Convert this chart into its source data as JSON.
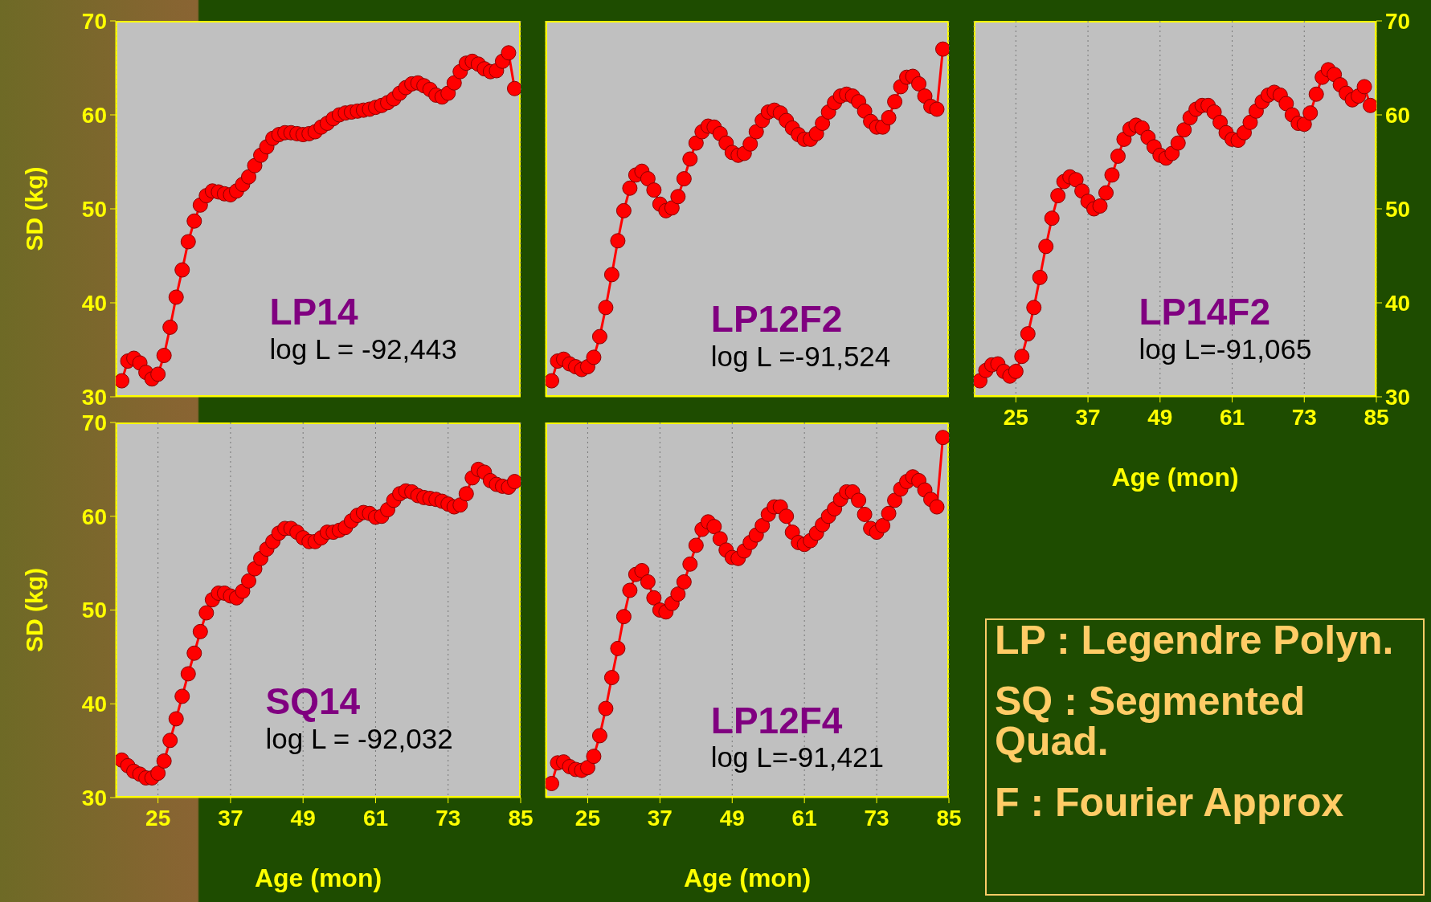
{
  "chart_data": [
    {
      "type": "line",
      "ylabel": "SD (kg)",
      "annotations": [
        "LP14",
        "log L = -92,443"
      ],
      "xlim": [
        18,
        85
      ],
      "ylim": [
        30,
        70
      ],
      "xticks": [
        25,
        37,
        49,
        61,
        73,
        85
      ],
      "yticks": [
        30,
        40,
        50,
        60,
        70
      ],
      "grid": "x",
      "marker": "circle",
      "tick_labels": "y",
      "x": [
        19,
        20,
        21,
        22,
        23,
        24,
        25,
        26,
        27,
        28,
        29,
        30,
        31,
        32,
        33,
        34,
        35,
        36,
        37,
        38,
        39,
        40,
        41,
        42,
        43,
        44,
        45,
        46,
        47,
        48,
        49,
        50,
        51,
        52,
        53,
        54,
        55,
        56,
        57,
        58,
        59,
        60,
        61,
        62,
        63,
        64,
        65,
        66,
        67,
        68,
        69,
        70,
        71,
        72,
        73,
        74,
        75,
        76,
        77,
        78,
        79,
        80,
        81,
        82,
        83,
        84
      ],
      "series": [
        {
          "color": "#ff0000",
          "values": [
            31.7,
            33.8,
            34.1,
            33.6,
            32.6,
            31.9,
            32.4,
            34.4,
            37.4,
            40.6,
            43.5,
            46.5,
            48.7,
            50.4,
            51.4,
            51.9,
            51.8,
            51.6,
            51.5,
            51.9,
            52.6,
            53.4,
            54.6,
            55.7,
            56.6,
            57.5,
            57.9,
            58.1,
            58.1,
            58.0,
            57.9,
            58.0,
            58.2,
            58.7,
            59.1,
            59.6,
            60.0,
            60.2,
            60.3,
            60.4,
            60.5,
            60.6,
            60.8,
            61.0,
            61.3,
            61.7,
            62.3,
            62.9,
            63.3,
            63.4,
            63.1,
            62.7,
            62.1,
            61.9,
            62.3,
            63.4,
            64.6,
            65.5,
            65.7,
            65.4,
            64.9,
            64.6,
            64.7,
            65.7,
            66.6,
            62.8
          ]
        }
      ]
    },
    {
      "type": "line",
      "annotations": [
        "LP12F2",
        "log L =-91,524"
      ],
      "xlim": [
        18,
        85
      ],
      "ylim": [
        30,
        70
      ],
      "xticks": [
        25,
        37,
        49,
        61,
        73,
        85
      ],
      "yticks": [
        30,
        40,
        50,
        60,
        70
      ],
      "grid": "x",
      "marker": "circle",
      "tick_labels": false,
      "x": [
        19,
        20,
        21,
        22,
        23,
        24,
        25,
        26,
        27,
        28,
        29,
        30,
        31,
        32,
        33,
        34,
        35,
        36,
        37,
        38,
        39,
        40,
        41,
        42,
        43,
        44,
        45,
        46,
        47,
        48,
        49,
        50,
        51,
        52,
        53,
        54,
        55,
        56,
        57,
        58,
        59,
        60,
        61,
        62,
        63,
        64,
        65,
        66,
        67,
        68,
        69,
        70,
        71,
        72,
        73,
        74,
        75,
        76,
        77,
        78,
        79,
        80,
        81,
        82,
        83,
        84
      ],
      "series": [
        {
          "color": "#ff0000",
          "values": [
            31.7,
            33.8,
            34.0,
            33.5,
            33.2,
            32.9,
            33.2,
            34.2,
            36.4,
            39.5,
            43.0,
            46.6,
            49.8,
            52.2,
            53.6,
            54.0,
            53.2,
            52.0,
            50.5,
            49.8,
            50.1,
            51.3,
            53.2,
            55.3,
            57.0,
            58.2,
            58.8,
            58.7,
            58.0,
            57.0,
            56.0,
            55.7,
            55.9,
            56.9,
            58.2,
            59.4,
            60.3,
            60.5,
            60.2,
            59.4,
            58.6,
            57.9,
            57.4,
            57.4,
            58.0,
            59.1,
            60.3,
            61.3,
            62.0,
            62.2,
            62.0,
            61.4,
            60.4,
            59.3,
            58.7,
            58.7,
            59.7,
            61.4,
            63.0,
            64.0,
            64.1,
            63.3,
            62.0,
            60.9,
            60.6,
            67.0
          ]
        }
      ]
    },
    {
      "type": "line",
      "xlabel": "Age (mon)",
      "annotations": [
        "LP14F2",
        "log L=-91,065"
      ],
      "xlim": [
        18,
        85
      ],
      "ylim": [
        30,
        70
      ],
      "xticks": [
        25,
        37,
        49,
        61,
        73,
        85
      ],
      "yticks": [
        30,
        40,
        50,
        60,
        70
      ],
      "grid": "x",
      "marker": "circle",
      "x": [
        19,
        20,
        21,
        22,
        23,
        24,
        25,
        26,
        27,
        28,
        29,
        30,
        31,
        32,
        33,
        34,
        35,
        36,
        37,
        38,
        39,
        40,
        41,
        42,
        43,
        44,
        45,
        46,
        47,
        48,
        49,
        50,
        51,
        52,
        53,
        54,
        55,
        56,
        57,
        58,
        59,
        60,
        61,
        62,
        63,
        64,
        65,
        66,
        67,
        68,
        69,
        70,
        71,
        72,
        73,
        74,
        75,
        76,
        77,
        78,
        79,
        80,
        81,
        82,
        83,
        84
      ],
      "series": [
        {
          "color": "#ff0000",
          "values": [
            31.7,
            32.8,
            33.4,
            33.5,
            32.7,
            32.2,
            32.7,
            34.3,
            36.7,
            39.5,
            42.7,
            46.0,
            49.0,
            51.4,
            52.9,
            53.4,
            53.1,
            51.9,
            50.8,
            50.0,
            50.3,
            51.7,
            53.6,
            55.6,
            57.4,
            58.5,
            58.9,
            58.6,
            57.6,
            56.6,
            55.7,
            55.4,
            55.9,
            57.0,
            58.4,
            59.7,
            60.6,
            61.0,
            61.0,
            60.3,
            59.2,
            58.1,
            57.4,
            57.3,
            58.1,
            59.2,
            60.4,
            61.4,
            62.1,
            62.4,
            62.1,
            61.2,
            60.0,
            59.1,
            59.0,
            60.2,
            62.2,
            64.0,
            64.8,
            64.3,
            63.2,
            62.3,
            61.6,
            62.0,
            63.0,
            61.0
          ]
        }
      ]
    },
    {
      "type": "line",
      "xlabel": "Age (mon)",
      "ylabel": "SD (kg)",
      "annotations": [
        "SQ14",
        "log L = -92,032"
      ],
      "xlim": [
        18,
        85
      ],
      "ylim": [
        30,
        70
      ],
      "xticks": [
        25,
        37,
        49,
        61,
        73,
        85
      ],
      "yticks": [
        30,
        40,
        50,
        60,
        70
      ],
      "grid": "x",
      "marker": "circle",
      "x": [
        19,
        20,
        21,
        22,
        23,
        24,
        25,
        26,
        27,
        28,
        29,
        30,
        31,
        32,
        33,
        34,
        35,
        36,
        37,
        38,
        39,
        40,
        41,
        42,
        43,
        44,
        45,
        46,
        47,
        48,
        49,
        50,
        51,
        52,
        53,
        54,
        55,
        56,
        57,
        58,
        59,
        60,
        61,
        62,
        63,
        64,
        65,
        66,
        67,
        68,
        69,
        70,
        71,
        72,
        73,
        74,
        75,
        76,
        77,
        78,
        79,
        80,
        81,
        82,
        83,
        84
      ],
      "series": [
        {
          "color": "#ff0000",
          "values": [
            34.0,
            33.4,
            32.8,
            32.5,
            32.1,
            32.1,
            32.6,
            33.9,
            36.1,
            38.4,
            40.8,
            43.2,
            45.4,
            47.7,
            49.7,
            51.1,
            51.8,
            51.8,
            51.5,
            51.3,
            52.0,
            53.1,
            54.4,
            55.5,
            56.5,
            57.3,
            58.2,
            58.7,
            58.7,
            58.3,
            57.7,
            57.3,
            57.3,
            57.7,
            58.3,
            58.3,
            58.5,
            58.8,
            59.5,
            60.1,
            60.4,
            60.3,
            59.9,
            60.0,
            60.7,
            61.7,
            62.4,
            62.7,
            62.6,
            62.2,
            62.0,
            61.9,
            61.8,
            61.6,
            61.3,
            61.0,
            61.2,
            62.4,
            64.1,
            65.0,
            64.7,
            63.8,
            63.4,
            63.2,
            63.1,
            63.7
          ]
        }
      ]
    },
    {
      "type": "line",
      "xlabel": "Age (mon)",
      "annotations": [
        "LP12F4",
        "log L=-91,421"
      ],
      "xlim": [
        18,
        85
      ],
      "ylim": [
        30,
        70
      ],
      "xticks": [
        25,
        37,
        49,
        61,
        73,
        85
      ],
      "yticks": [
        30,
        40,
        50,
        60,
        70
      ],
      "grid": "x",
      "marker": "circle",
      "tick_labels": "x",
      "x": [
        19,
        20,
        21,
        22,
        23,
        24,
        25,
        26,
        27,
        28,
        29,
        30,
        31,
        32,
        33,
        34,
        35,
        36,
        37,
        38,
        39,
        40,
        41,
        42,
        43,
        44,
        45,
        46,
        47,
        48,
        49,
        50,
        51,
        52,
        53,
        54,
        55,
        56,
        57,
        58,
        59,
        60,
        61,
        62,
        63,
        64,
        65,
        66,
        67,
        68,
        69,
        70,
        71,
        72,
        73,
        74,
        75,
        76,
        77,
        78,
        79,
        80,
        81,
        82,
        83,
        84
      ],
      "series": [
        {
          "color": "#ff0000",
          "values": [
            31.5,
            33.7,
            33.8,
            33.3,
            33.0,
            32.9,
            33.2,
            34.4,
            36.6,
            39.5,
            42.8,
            45.9,
            49.3,
            52.1,
            53.8,
            54.2,
            53.0,
            51.3,
            50.0,
            49.8,
            50.7,
            51.7,
            53.0,
            54.9,
            56.9,
            58.6,
            59.4,
            58.9,
            57.6,
            56.4,
            55.6,
            55.5,
            56.3,
            57.2,
            58.0,
            59.0,
            60.2,
            61.0,
            61.0,
            60.0,
            58.3,
            57.2,
            57.0,
            57.4,
            58.2,
            59.1,
            60.0,
            60.8,
            61.8,
            62.6,
            62.6,
            61.7,
            60.2,
            58.7,
            58.3,
            59.0,
            60.3,
            61.7,
            62.9,
            63.7,
            64.2,
            63.8,
            62.8,
            61.8,
            61.0,
            68.4
          ]
        }
      ]
    },
    {
      "type": "other",
      "annotations": [
        "LP : Legendre Polyn.",
        "SQ : Segmented Quad.",
        "F : Fourier Approx"
      ]
    }
  ]
}
